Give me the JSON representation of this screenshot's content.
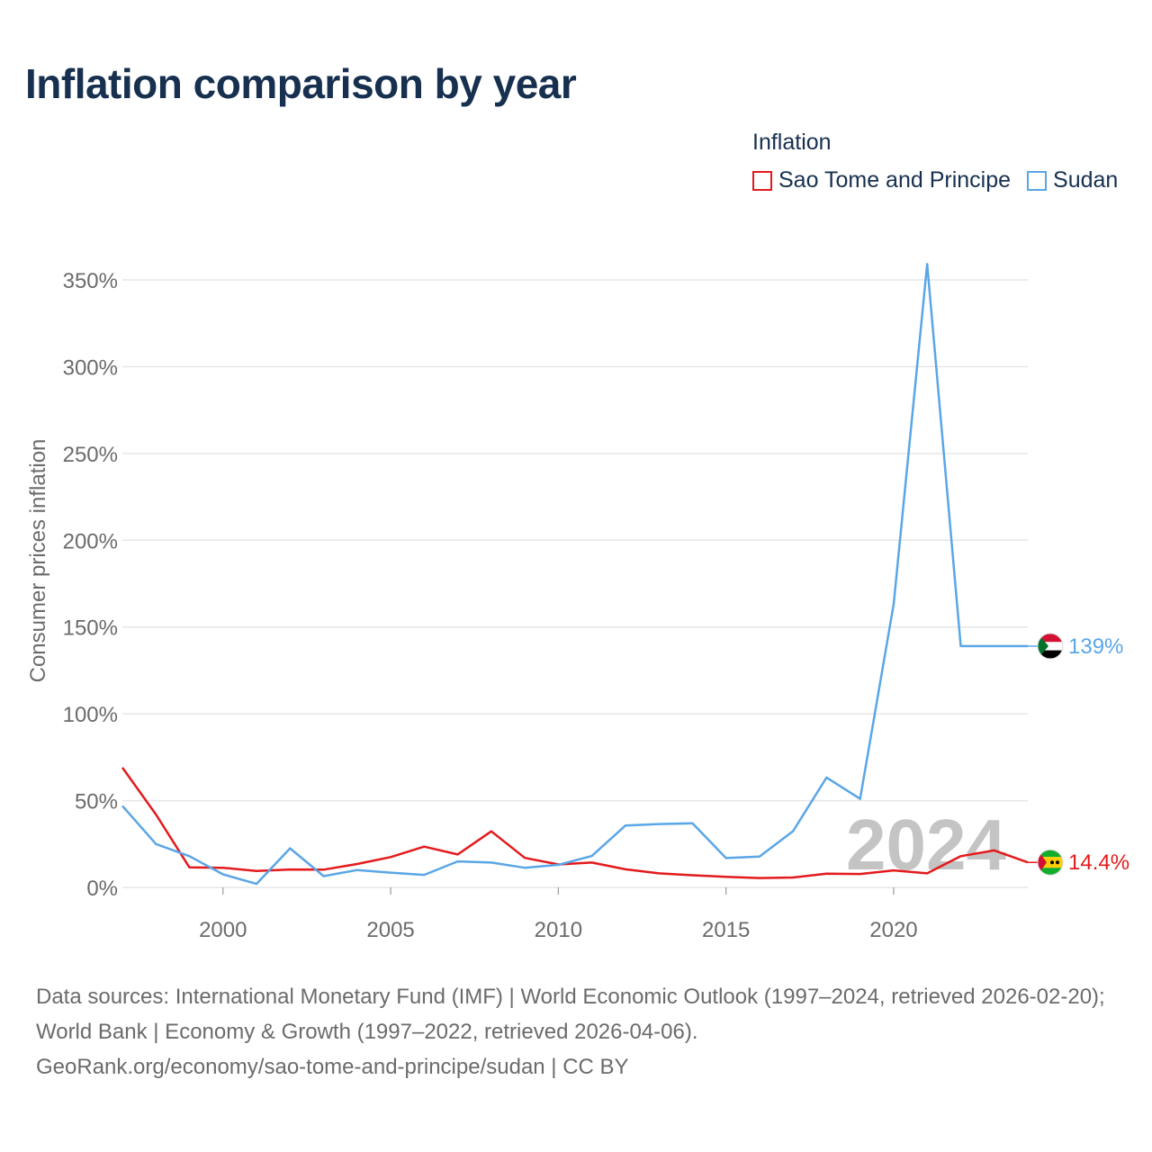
{
  "title": "Inflation comparison by year",
  "legend": {
    "title": "Inflation",
    "items": [
      {
        "label": "Sao Tome and Principe",
        "color": "#e31a1c"
      },
      {
        "label": "Sudan",
        "color": "#5aa6e6"
      }
    ]
  },
  "footer": {
    "sources": "Data sources: International Monetary Fund (IMF) | World Economic Outlook (1997–2024, retrieved 2026-02-20); World Bank | Economy & Growth (1997–2022, retrieved 2026-04-06).",
    "credit": "GeoRank.org/economy/sao-tome-and-principe/sudan | CC BY"
  },
  "chart_data": {
    "type": "line",
    "title": "Inflation comparison by year",
    "xlabel": "",
    "ylabel": "Consumer prices inflation",
    "xlim": [
      1997,
      2024
    ],
    "ylim": [
      0,
      350
    ],
    "yticks": [
      0,
      50,
      100,
      150,
      200,
      250,
      300,
      350
    ],
    "ytick_labels": [
      "0%",
      "50%",
      "100%",
      "150%",
      "200%",
      "250%",
      "300%",
      "350%"
    ],
    "xticks": [
      2000,
      2005,
      2010,
      2015,
      2020
    ],
    "xtick_labels": [
      "2000",
      "2005",
      "2010",
      "2015",
      "2020"
    ],
    "year_watermark": "2024",
    "grid": true,
    "x": [
      1997,
      1998,
      1999,
      2000,
      2001,
      2002,
      2003,
      2004,
      2005,
      2006,
      2007,
      2008,
      2009,
      2010,
      2011,
      2012,
      2013,
      2014,
      2015,
      2016,
      2017,
      2018,
      2019,
      2020,
      2021,
      2022,
      2023,
      2024
    ],
    "series": [
      {
        "name": "Sao Tome and Principe",
        "color": "#e31a1c",
        "end_label": "14.4%",
        "flag": "sao-tome-and-principe-flag",
        "values": [
          69,
          42,
          11.5,
          11.3,
          9.5,
          10.3,
          10.2,
          13.5,
          17.5,
          23.5,
          19,
          32.3,
          17,
          13.2,
          14.3,
          10.4,
          8.1,
          7,
          6.1,
          5.4,
          5.7,
          7.9,
          7.7,
          9.8,
          8.1,
          18,
          21.3,
          14.4
        ]
      },
      {
        "name": "Sudan",
        "color": "#5aa6e6",
        "end_label": "139%",
        "flag": "sudan-flag",
        "values": [
          47,
          25,
          18,
          7.5,
          2,
          22.5,
          6.5,
          10,
          8.5,
          7.2,
          15,
          14.3,
          11.3,
          13,
          18.1,
          35.6,
          36.5,
          36.9,
          16.9,
          17.8,
          32.4,
          63.3,
          51,
          163.3,
          359.1,
          139,
          139,
          139
        ]
      }
    ]
  }
}
